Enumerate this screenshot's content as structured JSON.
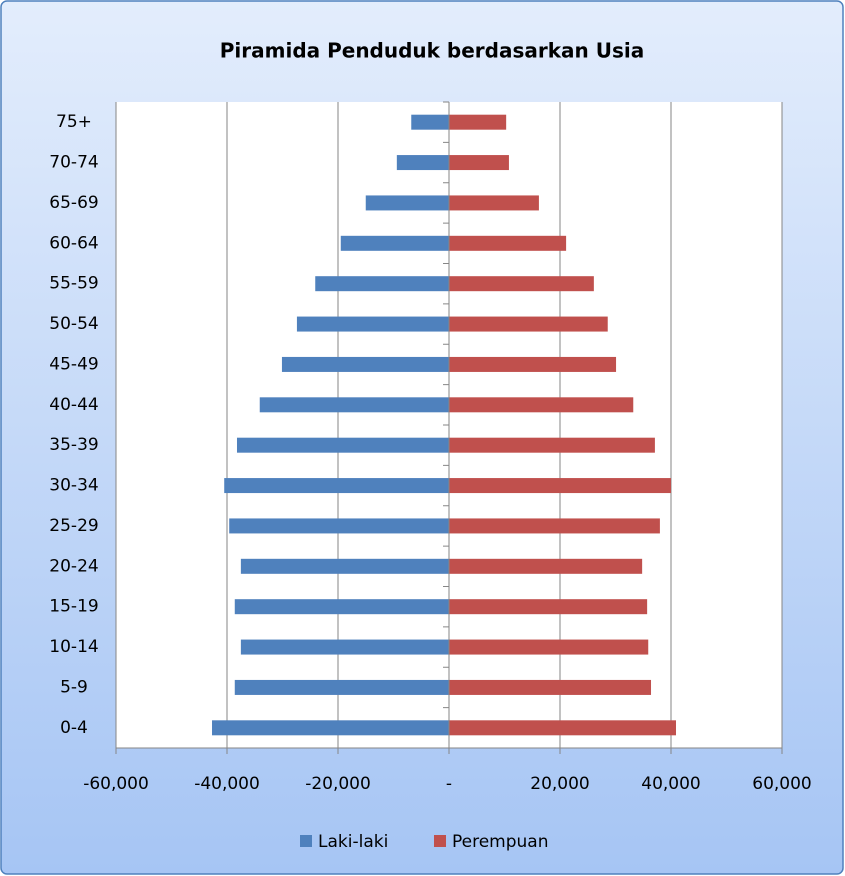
{
  "chart_data": {
    "type": "bar",
    "orientation": "horizontal",
    "title": "Piramida Penduduk berdasarkan Usia",
    "categories": [
      "0-4",
      "5-9",
      "10-14",
      "15-19",
      "20-24",
      "25-29",
      "30-34",
      "35-39",
      "40-44",
      "45-49",
      "50-54",
      "55-59",
      "60-64",
      "65-69",
      "70-74",
      "75+"
    ],
    "series": [
      {
        "name": "Laki-laki",
        "color": "#4f81bd",
        "values": [
          -42700,
          -38600,
          -37500,
          -38600,
          -37500,
          -39600,
          -40500,
          -38200,
          -34100,
          -30100,
          -27400,
          -24100,
          -19500,
          -15000,
          -9400,
          -6800
        ]
      },
      {
        "name": "Perempuan",
        "color": "#c0504d",
        "values": [
          40900,
          36400,
          35900,
          35700,
          34800,
          38000,
          40000,
          37100,
          33200,
          30100,
          28600,
          26100,
          21100,
          16200,
          10800,
          10300
        ]
      }
    ],
    "xlim": [
      -60000,
      60000
    ],
    "xticks": [
      {
        "value": -60000,
        "label": "-60,000"
      },
      {
        "value": -40000,
        "label": "-40,000"
      },
      {
        "value": -20000,
        "label": "-20,000"
      },
      {
        "value": 0,
        "label": "-"
      },
      {
        "value": 20000,
        "label": "20,000"
      },
      {
        "value": 40000,
        "label": "40,000"
      },
      {
        "value": 60000,
        "label": "60,000"
      }
    ],
    "grid": true,
    "legend": "bottom"
  }
}
